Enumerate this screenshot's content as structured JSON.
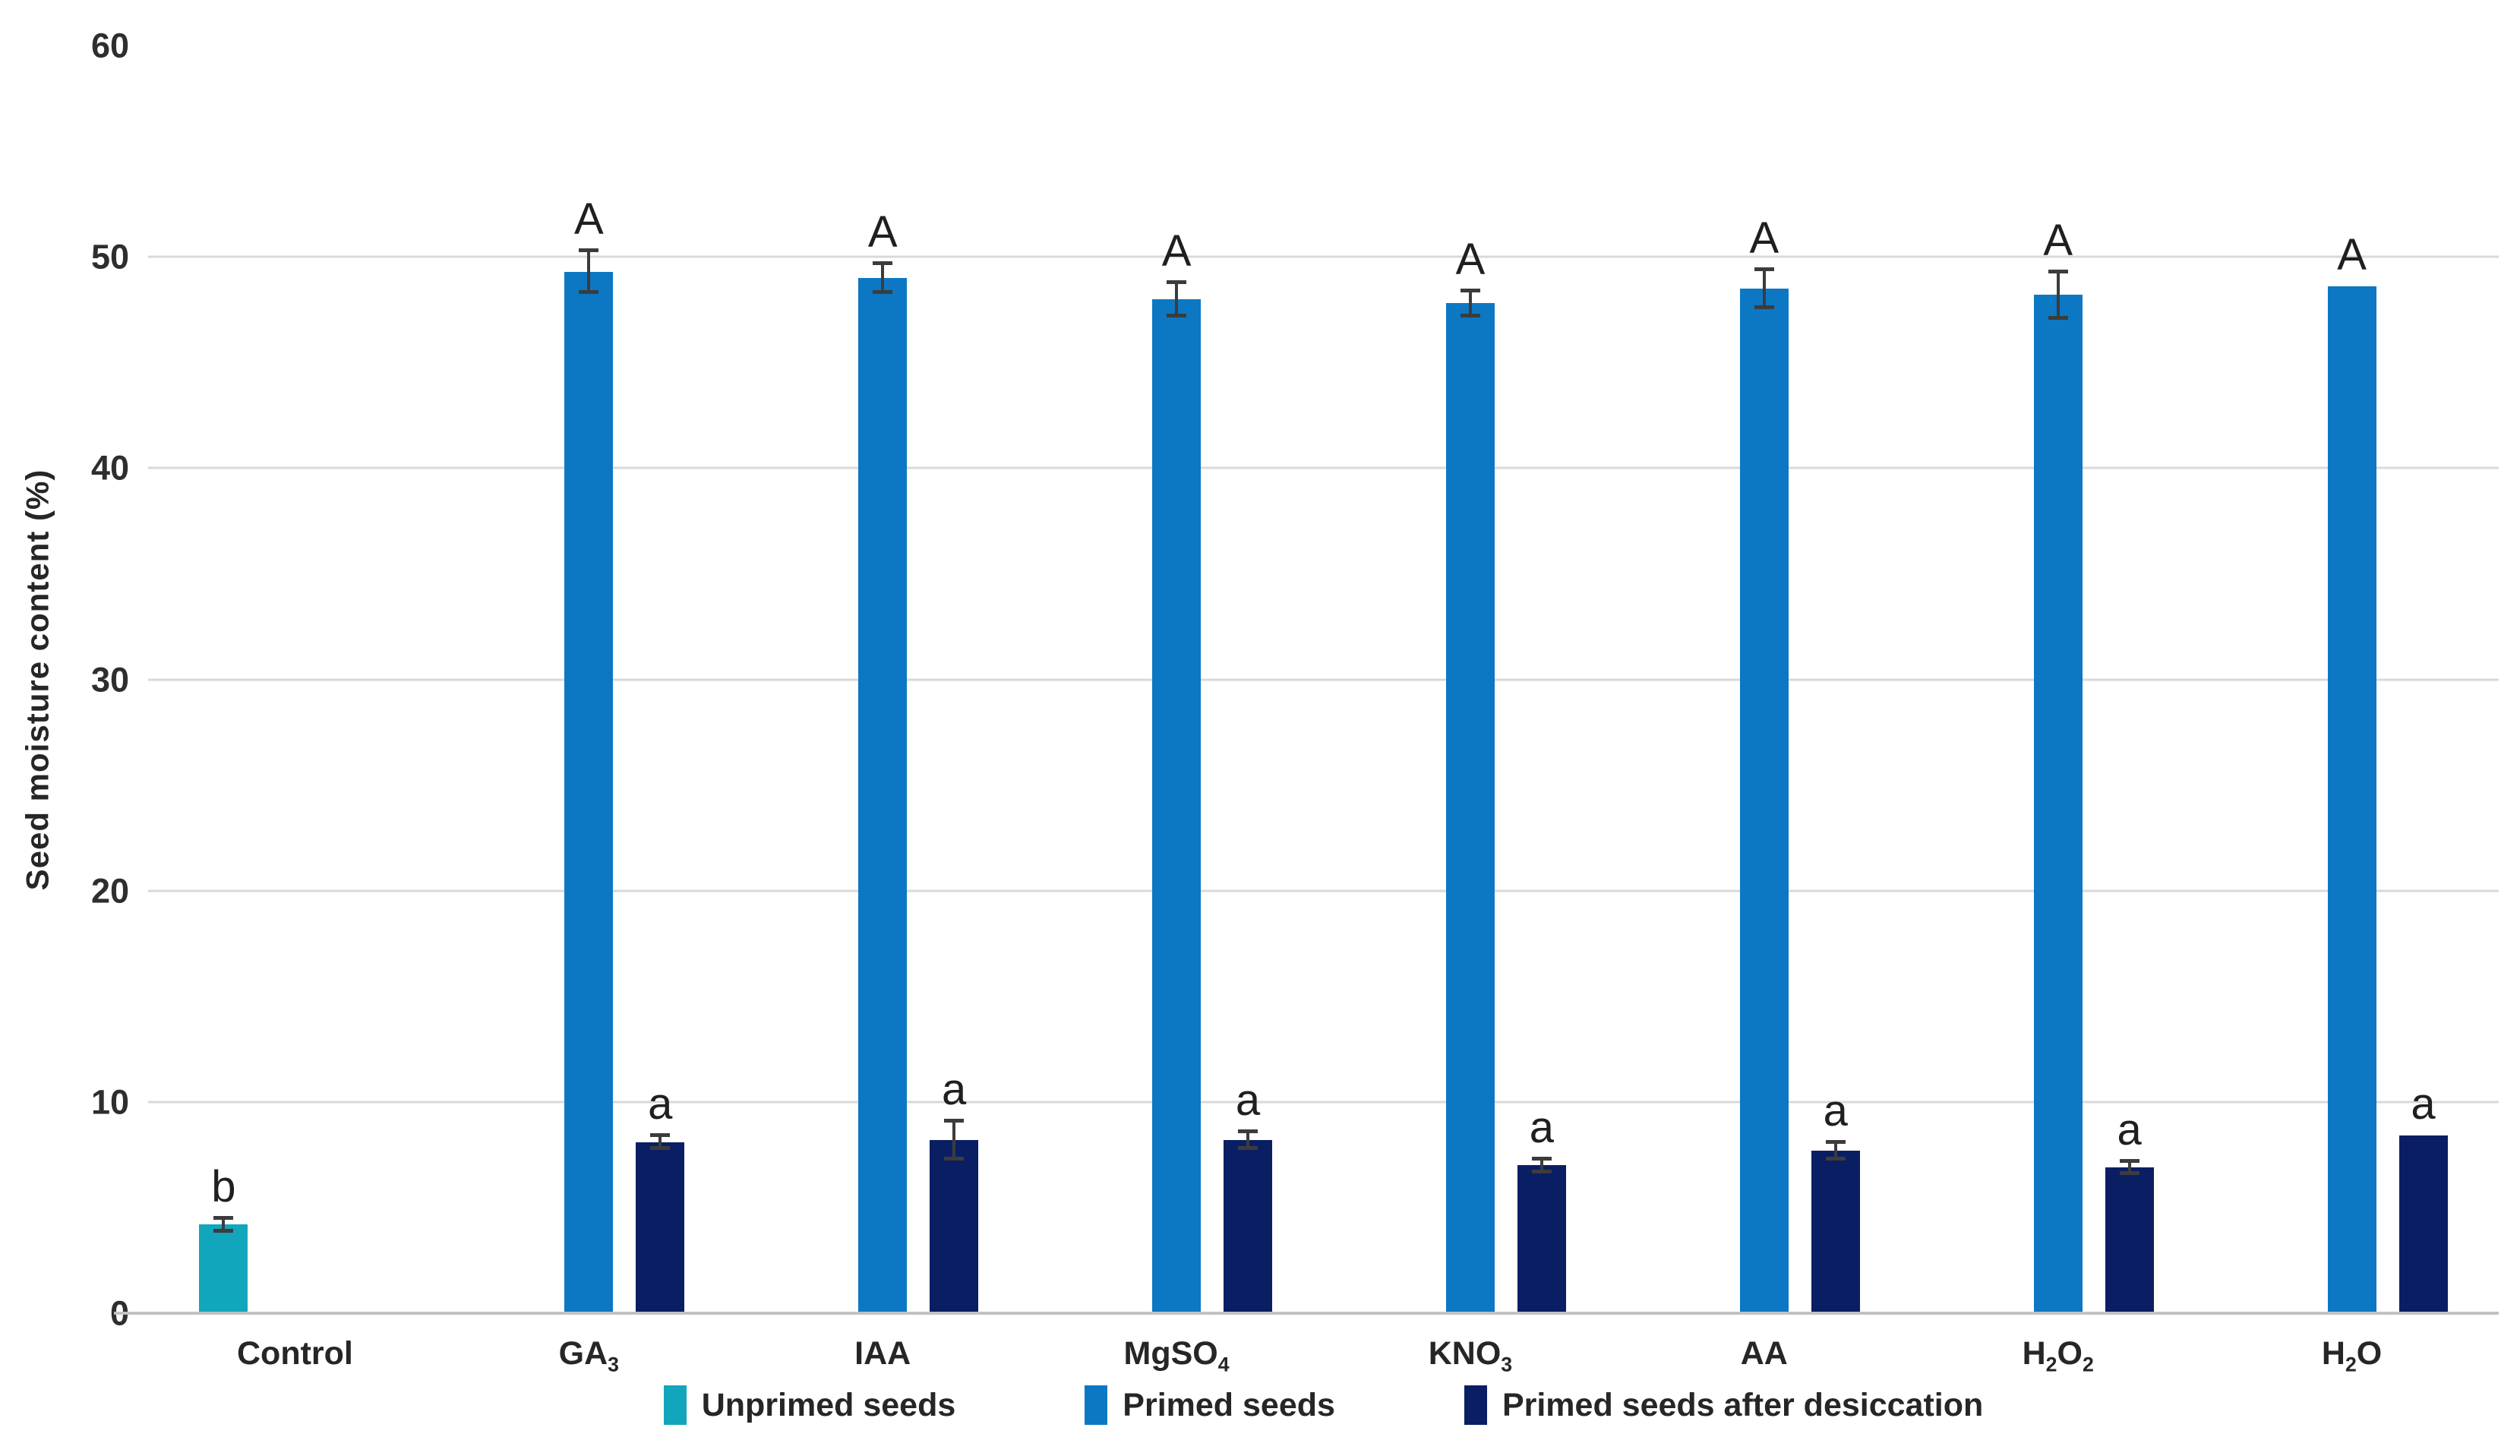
{
  "chart_data": {
    "type": "bar",
    "title": "",
    "xlabel": "",
    "ylabel": "Seed moisture content (%)",
    "ylim": [
      0,
      60
    ],
    "yticks": [
      0,
      10,
      20,
      30,
      40,
      50,
      60
    ],
    "grid": true,
    "legend_position": "bottom",
    "categories": [
      "Control",
      "GA₃",
      "IAA",
      "MgSO₄",
      "KNO₃",
      "AA",
      "H₂O₂",
      "H₂O"
    ],
    "series": [
      {
        "name": "Unprimed seeds",
        "color": "#11a6bc",
        "values": [
          4.2,
          null,
          null,
          null,
          null,
          null,
          null,
          null
        ],
        "errors": [
          0.3,
          null,
          null,
          null,
          null,
          null,
          null,
          null
        ],
        "letters": [
          "b",
          null,
          null,
          null,
          null,
          null,
          null,
          null
        ]
      },
      {
        "name": "Primed seeds",
        "color": "#0c78c4",
        "values": [
          null,
          49.3,
          49.0,
          48.0,
          47.8,
          48.5,
          48.2,
          48.6
        ],
        "errors": [
          null,
          1.0,
          0.7,
          0.8,
          0.6,
          0.9,
          1.1,
          0
        ],
        "letters": [
          null,
          "A",
          "A",
          "A",
          "A",
          "A",
          "A",
          "A"
        ]
      },
      {
        "name": "Primed seeds after desiccation",
        "color": "#0a1e64",
        "values": [
          null,
          8.1,
          8.2,
          8.2,
          7.0,
          7.7,
          6.9,
          8.4
        ],
        "errors": [
          null,
          0.3,
          0.9,
          0.4,
          0.3,
          0.4,
          0.3,
          0
        ],
        "letters": [
          null,
          "a",
          "a",
          "a",
          "a",
          "a",
          "a",
          "a"
        ]
      }
    ],
    "colors": {
      "gridline": "#d9d9d9",
      "axis_line": "#c2c2c2",
      "error_bar": "#3c3c3c",
      "text": "#262626"
    }
  }
}
